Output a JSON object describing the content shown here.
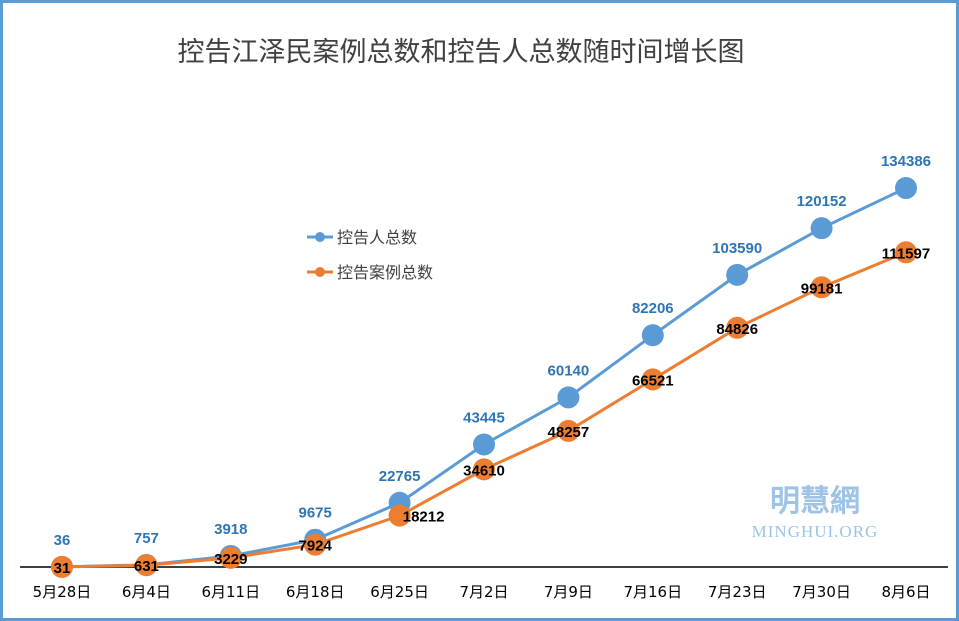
{
  "chart_data": {
    "type": "line",
    "title": "控告江泽民案例总数和控告人总数随时间增长图",
    "categories": [
      "5月28日",
      "6月4日",
      "6月11日",
      "6月18日",
      "6月25日",
      "7月2日",
      "7月9日",
      "7月16日",
      "7月23日",
      "7月30日",
      "8月6日"
    ],
    "series": [
      {
        "name": "控告人总数",
        "color": "#5b9bd5",
        "values": [
          36,
          757,
          3918,
          9675,
          22765,
          43445,
          60140,
          82206,
          103590,
          120152,
          134386
        ]
      },
      {
        "name": "控告案例总数",
        "color": "#ed7d31",
        "values": [
          31,
          631,
          3229,
          7924,
          18212,
          34610,
          48257,
          66521,
          84826,
          99181,
          111597
        ]
      }
    ],
    "ylim": [
      0,
      150000
    ],
    "grid": false,
    "legend": "center-left",
    "data_labels": true
  },
  "watermark": {
    "cn": "明慧網",
    "en": "MINGHUI.ORG"
  }
}
